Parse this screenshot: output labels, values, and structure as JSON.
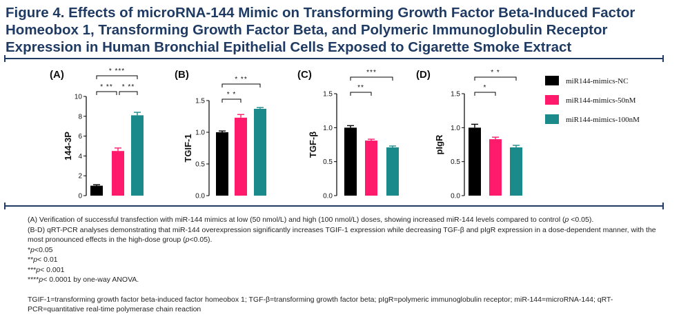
{
  "title": "Figure 4. Effects of microRNA-144 Mimic on Transforming Growth Factor Beta-Induced Factor Homeobox 1, Transforming Growth Factor Beta, and Polymeric Immunoglobulin Receptor Expression in Human Bronchial Epithelial Cells Exposed to Cigarette Smoke Extract",
  "colors": {
    "title": "#1f3b64",
    "nc": "#000000",
    "low": "#ff1a6c",
    "high": "#1b8a8a"
  },
  "legend": [
    {
      "label": "miR144-mimics-NC",
      "color": "#000000"
    },
    {
      "label": "miR144-mimics-50nM",
      "color": "#ff1a6c"
    },
    {
      "label": "miR144-mimics-100nM",
      "color": "#1b8a8a"
    }
  ],
  "chart_data": [
    {
      "panel": "(A)",
      "type": "bar",
      "ylabel": "144-3P",
      "categories": [
        "miR144-mimics-NC",
        "miR144-mimics-50nM",
        "miR144-mimics-100nM"
      ],
      "values": [
        1.0,
        4.5,
        8.1
      ],
      "errors": [
        0.1,
        0.3,
        0.3
      ],
      "ylim": [
        0,
        10
      ],
      "yticks": [
        "0",
        "2",
        "4",
        "6",
        "8",
        "10"
      ],
      "brackets": [
        {
          "from": 0,
          "to": 1,
          "level": 1,
          "label": "* **"
        },
        {
          "from": 1,
          "to": 2,
          "level": 1,
          "label": "* **"
        },
        {
          "from": 0,
          "to": 2,
          "level": 2,
          "label": "* ***"
        }
      ]
    },
    {
      "panel": "(B)",
      "type": "bar",
      "ylabel": "TGIF-1",
      "categories": [
        "miR144-mimics-NC",
        "miR144-mimics-50nM",
        "miR144-mimics-100nM"
      ],
      "values": [
        1.0,
        1.23,
        1.37
      ],
      "errors": [
        0.02,
        0.05,
        0.02
      ],
      "ylim": [
        0,
        1.5
      ],
      "yticks": [
        "0.0",
        "0.5",
        "1.0",
        "1.5"
      ],
      "brackets": [
        {
          "from": 0,
          "to": 1,
          "level": 1,
          "label": "* *"
        },
        {
          "from": 0,
          "to": 2,
          "level": 2,
          "label": "* **"
        }
      ]
    },
    {
      "panel": "(C)",
      "type": "bar",
      "ylabel": "TGF-β",
      "categories": [
        "miR144-mimics-NC",
        "miR144-mimics-50nM",
        "miR144-mimics-100nM"
      ],
      "values": [
        1.0,
        0.81,
        0.71
      ],
      "errors": [
        0.03,
        0.02,
        0.02
      ],
      "ylim": [
        0,
        1.5
      ],
      "yticks": [
        "0.0",
        "0.5",
        "1.0",
        "1.5"
      ],
      "brackets": [
        {
          "from": 0,
          "to": 1,
          "level": 1,
          "label": "**"
        },
        {
          "from": 0,
          "to": 2,
          "level": 2,
          "label": "***"
        }
      ]
    },
    {
      "panel": "(D)",
      "type": "bar",
      "ylabel": "pIgR",
      "categories": [
        "miR144-mimics-NC",
        "miR144-mimics-50nM",
        "miR144-mimics-100nM"
      ],
      "values": [
        1.0,
        0.83,
        0.71
      ],
      "errors": [
        0.05,
        0.03,
        0.03
      ],
      "ylim": [
        0,
        1.5
      ],
      "yticks": [
        "0.0",
        "0.5",
        "1.0",
        "1.5"
      ],
      "brackets": [
        {
          "from": 0,
          "to": 1,
          "level": 1,
          "label": "*"
        },
        {
          "from": 0,
          "to": 2,
          "level": 2,
          "label": "* *"
        }
      ]
    }
  ],
  "caption": {
    "line1_pre": "(A) Verification of successful transfection with miR-144 mimics at low (50 nmol/L) and high (100 nmol/L) doses, showing increased miR-144 levels compared to control (",
    "line1_p": "p",
    "line1_post": " <0.05).",
    "line2_pre": "(B-D) qRT-PCR analyses demonstrating that miR-144 overexpression significantly increases TGIF-1 expression while decreasing TGF-β and pIgR expression in a dose-dependent manner, with the most pronounced effects in the high-dose group (",
    "line2_p": "p",
    "line2_post": "<0.05).",
    "sig": [
      {
        "stars": "*",
        "p": "p",
        "rest": "<0.05"
      },
      {
        "stars": "**",
        "p": "p",
        "rest": "< 0.01"
      },
      {
        "stars": "***",
        "p": "p",
        "rest": "< 0.001"
      },
      {
        "stars": "****",
        "p": "p",
        "rest": "< 0.0001 by one-way ANOVA."
      }
    ],
    "abbreviations": "TGIF-1=transforming growth factor beta-induced factor homeobox 1; TGF-β=transforming growth factor beta; pIgR=polymeric immunoglobulin receptor; miR-144=microRNA-144; qRT-PCR=quantitative real-time polymerase chain reaction"
  }
}
